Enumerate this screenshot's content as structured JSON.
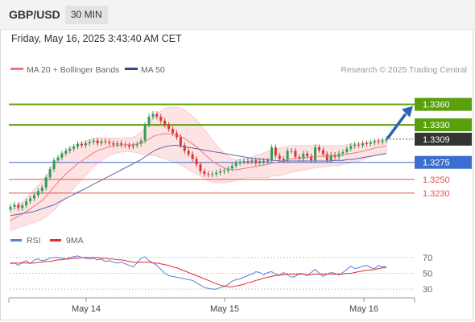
{
  "header": {
    "symbol": "GBP/USD",
    "timeframe": "30 MIN",
    "timestamp": "Friday, May 16, 2025 3:43:40 AM CET"
  },
  "legend": {
    "ma20_label": "MA 20 + Bollinger Bands",
    "ma50_label": "MA 50",
    "credit": "Research © 2025 Trading Central"
  },
  "rsi_legend": {
    "rsi_label": "RSI",
    "ma9_label": "9MA"
  },
  "colors": {
    "resistance": "#5aa00c",
    "current": "#333333",
    "pivot": "#3a6fd0",
    "support": "#e05252",
    "bull": "#2f9e5a",
    "bear": "#d9383a",
    "ma20": "#f07a7a",
    "ma50": "#5a6aa8",
    "band": "#fcd9d9",
    "arrow": "#2b62b3",
    "rsi": "#5b7fd4",
    "rsi_ma": "#e03030"
  },
  "chart_data": [
    {
      "type": "candlestick",
      "ylim": [
        1.3185,
        1.3395
      ],
      "x_ticks": [
        "May 14",
        "May 15",
        "May 16"
      ],
      "levels": [
        {
          "label": "1.3360",
          "value": 1.336,
          "kind": "resistance"
        },
        {
          "label": "1.3330",
          "value": 1.333,
          "kind": "resistance"
        },
        {
          "label": "1.3309",
          "value": 1.3309,
          "kind": "current"
        },
        {
          "label": "1.3275",
          "value": 1.3275,
          "kind": "pivot"
        },
        {
          "label": "1.3250",
          "value": 1.325,
          "kind": "support"
        },
        {
          "label": "1.3230",
          "value": 1.323,
          "kind": "support"
        }
      ],
      "closes": [
        1.321,
        1.3213,
        1.3208,
        1.3212,
        1.3218,
        1.3222,
        1.3227,
        1.3233,
        1.3238,
        1.3253,
        1.3265,
        1.3278,
        1.3282,
        1.3288,
        1.3292,
        1.3295,
        1.3298,
        1.3302,
        1.33,
        1.3303,
        1.3305,
        1.3307,
        1.3303,
        1.3306,
        1.3305,
        1.3303,
        1.3301,
        1.3303,
        1.3301,
        1.33,
        1.3298,
        1.33,
        1.3302,
        1.3307,
        1.333,
        1.3342,
        1.3346,
        1.3342,
        1.3336,
        1.333,
        1.3324,
        1.3318,
        1.3312,
        1.33,
        1.3292,
        1.3287,
        1.328,
        1.3272,
        1.3262,
        1.3258,
        1.3257,
        1.3258,
        1.326,
        1.3262,
        1.3263,
        1.3266,
        1.327,
        1.3274,
        1.3276,
        1.3277,
        1.3276,
        1.3278,
        1.3274,
        1.3277,
        1.3276,
        1.3278,
        1.3297,
        1.3285,
        1.328,
        1.3278,
        1.3292,
        1.3292,
        1.3283,
        1.328,
        1.3288,
        1.3284,
        1.3278,
        1.3297,
        1.3293,
        1.3287,
        1.3278,
        1.3286,
        1.3283,
        1.3288,
        1.329,
        1.3295,
        1.3299,
        1.3301,
        1.33,
        1.3303,
        1.3302,
        1.3304,
        1.3306,
        1.3305,
        1.3307,
        1.3309
      ],
      "ma20": [
        1.319,
        1.3193,
        1.3196,
        1.3199,
        1.3203,
        1.3207,
        1.3211,
        1.3215,
        1.3219,
        1.3225,
        1.3232,
        1.3239,
        1.3246,
        1.3252,
        1.3258,
        1.3263,
        1.3268,
        1.3273,
        1.3277,
        1.3281,
        1.3285,
        1.3289,
        1.3292,
        1.3294,
        1.3296,
        1.3298,
        1.3299,
        1.33,
        1.33,
        1.3301,
        1.3301,
        1.3301,
        1.3302,
        1.3303,
        1.3306,
        1.3309,
        1.3313,
        1.3315,
        1.3316,
        1.3317,
        1.3317,
        1.3316,
        1.3315,
        1.3313,
        1.331,
        1.3306,
        1.3302,
        1.3298,
        1.3293,
        1.3287,
        1.3282,
        1.3277,
        1.3273,
        1.327,
        1.3267,
        1.3265,
        1.3264,
        1.3264,
        1.3265,
        1.3266,
        1.3267,
        1.3268,
        1.3269,
        1.327,
        1.3271,
        1.3272,
        1.3274,
        1.3275,
        1.3276,
        1.3277,
        1.3279,
        1.328,
        1.3281,
        1.3281,
        1.3282,
        1.3282,
        1.3283,
        1.3284,
        1.3284,
        1.3284,
        1.3284,
        1.3285,
        1.3285,
        1.3285,
        1.3286,
        1.3287,
        1.3288,
        1.3289,
        1.329,
        1.3291,
        1.3293,
        1.3294,
        1.3296,
        1.3297,
        1.3298,
        1.3299
      ],
      "ma50": [
        1.3197,
        1.3198,
        1.3199,
        1.32,
        1.3201,
        1.3202,
        1.3203,
        1.3205,
        1.3207,
        1.3209,
        1.3211,
        1.3213,
        1.3216,
        1.3219,
        1.3222,
        1.3225,
        1.3228,
        1.3231,
        1.3234,
        1.3237,
        1.324,
        1.3243,
        1.3246,
        1.3249,
        1.3252,
        1.3255,
        1.3258,
        1.3261,
        1.3264,
        1.3267,
        1.327,
        1.3273,
        1.3276,
        1.3279,
        1.3283,
        1.3287,
        1.3291,
        1.3294,
        1.3296,
        1.3298,
        1.3299,
        1.33,
        1.33,
        1.3299,
        1.3298,
        1.3297,
        1.3296,
        1.3295,
        1.3294,
        1.3293,
        1.3292,
        1.3291,
        1.329,
        1.3289,
        1.3288,
        1.3287,
        1.3286,
        1.3285,
        1.3284,
        1.3283,
        1.3282,
        1.3281,
        1.328,
        1.328,
        1.3279,
        1.3279,
        1.3278,
        1.3278,
        1.3277,
        1.3277,
        1.3277,
        1.3277,
        1.3277,
        1.3277,
        1.3277,
        1.3277,
        1.3277,
        1.3277,
        1.3277,
        1.3277,
        1.3277,
        1.3277,
        1.3278,
        1.3278,
        1.3278,
        1.3279,
        1.3279,
        1.328,
        1.3281,
        1.3282,
        1.3283,
        1.3284,
        1.3285,
        1.3286,
        1.3287,
        1.3288
      ],
      "band_width": [
        0.0015,
        0.0016,
        0.0017,
        0.0018,
        0.002,
        0.0022,
        0.0024,
        0.0026,
        0.0028,
        0.003,
        0.0032,
        0.0034,
        0.0035,
        0.0035,
        0.0034,
        0.0033,
        0.0031,
        0.0029,
        0.0027,
        0.0025,
        0.0023,
        0.0021,
        0.0019,
        0.0017,
        0.0015,
        0.0013,
        0.0012,
        0.0011,
        0.001,
        0.001,
        0.001,
        0.0011,
        0.0013,
        0.0016,
        0.002,
        0.0024,
        0.0028,
        0.0031,
        0.0034,
        0.0037,
        0.0039,
        0.004,
        0.0041,
        0.0042,
        0.0042,
        0.0042,
        0.0041,
        0.004,
        0.0038,
        0.0036,
        0.0034,
        0.0031,
        0.0028,
        0.0025,
        0.0022,
        0.0019,
        0.0017,
        0.0015,
        0.0014,
        0.0014,
        0.0014,
        0.0015,
        0.0016,
        0.0017,
        0.0018,
        0.0019,
        0.0019,
        0.002,
        0.002,
        0.002,
        0.002,
        0.002,
        0.0019,
        0.0019,
        0.0018,
        0.0018,
        0.0017,
        0.0017,
        0.0016,
        0.0016,
        0.0015,
        0.0015,
        0.0015,
        0.0015,
        0.0014,
        0.0014,
        0.0014,
        0.0013,
        0.0013,
        0.0012,
        0.0012,
        0.0011,
        0.0011,
        0.0011,
        0.001,
        0.001
      ]
    },
    {
      "type": "line",
      "title": "RSI",
      "ylim": [
        22,
        78
      ],
      "y_ticks": [
        70,
        50,
        30
      ],
      "series": [
        {
          "name": "RSI",
          "values": [
            62,
            63,
            60,
            64,
            66,
            62,
            67,
            68,
            66,
            67,
            69,
            70,
            70,
            69,
            68,
            70,
            71,
            72,
            70,
            69,
            68,
            69,
            67,
            68,
            65,
            66,
            64,
            63,
            64,
            62,
            60,
            58,
            63,
            69,
            71,
            66,
            63,
            60,
            55,
            50,
            47,
            46,
            45,
            44,
            43,
            42,
            41,
            38,
            35,
            32,
            31,
            30,
            30,
            32,
            33,
            36,
            40,
            42,
            43,
            45,
            47,
            49,
            52,
            51,
            48,
            51,
            52,
            49,
            47,
            51,
            48,
            45,
            46,
            50,
            49,
            47,
            51,
            55,
            50,
            46,
            49,
            51,
            50,
            48,
            51,
            55,
            59,
            56,
            57,
            59,
            60,
            57,
            56,
            60,
            58,
            59
          ]
        },
        {
          "name": "9MA",
          "values": [
            63,
            63,
            63,
            63,
            63,
            63,
            63,
            64,
            64,
            65,
            65,
            66,
            67,
            67,
            68,
            68,
            69,
            69,
            70,
            70,
            70,
            70,
            70,
            69,
            69,
            68,
            68,
            67,
            67,
            66,
            65,
            64,
            64,
            64,
            64,
            64,
            63,
            63,
            62,
            61,
            60,
            58,
            57,
            55,
            53,
            51,
            49,
            47,
            45,
            43,
            41,
            39,
            37,
            35,
            34,
            33,
            33,
            34,
            35,
            36,
            38,
            39,
            41,
            42,
            44,
            45,
            46,
            47,
            48,
            48,
            49,
            49,
            49,
            49,
            49,
            48,
            48,
            49,
            49,
            49,
            49,
            49,
            49,
            49,
            49,
            50,
            50,
            51,
            52,
            53,
            54,
            54,
            55,
            56,
            57,
            57
          ]
        }
      ]
    }
  ]
}
